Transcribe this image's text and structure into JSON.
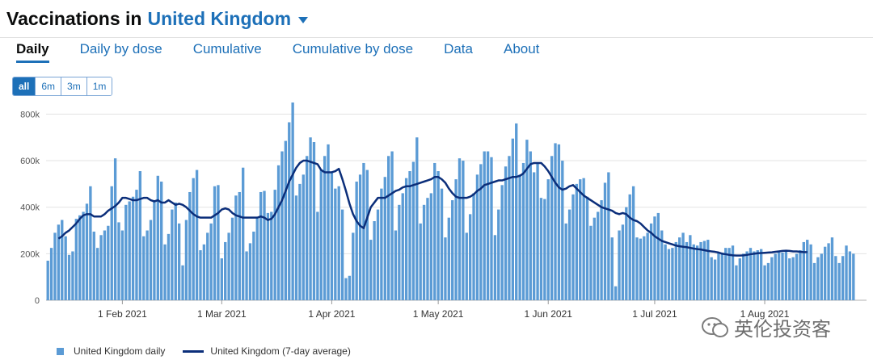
{
  "header": {
    "title_prefix": "Vaccinations in",
    "area": "United Kingdom"
  },
  "tabs": [
    {
      "label": "Daily",
      "active": true
    },
    {
      "label": "Daily by dose",
      "active": false
    },
    {
      "label": "Cumulative",
      "active": false
    },
    {
      "label": "Cumulative by dose",
      "active": false
    },
    {
      "label": "Data",
      "active": false
    },
    {
      "label": "About",
      "active": false
    }
  ],
  "range_buttons": [
    {
      "label": "all",
      "active": true
    },
    {
      "label": "6m",
      "active": false
    },
    {
      "label": "3m",
      "active": false
    },
    {
      "label": "1m",
      "active": false
    }
  ],
  "legend": {
    "bar_label": "United Kingdom daily",
    "line_label": "United Kingdom (7-day average)"
  },
  "watermark": {
    "text": "英伦投资客"
  },
  "colors": {
    "bar": "#5b9bd5",
    "line": "#0b2e7a",
    "accent": "#1d70b8",
    "grid": "#e3e3e3"
  },
  "chart_data": {
    "type": "bar",
    "x_start": "2021-01-11",
    "x_ticks": [
      {
        "label": "1 Feb 2021",
        "day": 21
      },
      {
        "label": "1 Mar 2021",
        "day": 49
      },
      {
        "label": "1 Apr 2021",
        "day": 80
      },
      {
        "label": "1 May 2021",
        "day": 110
      },
      {
        "label": "1 Jun 2021",
        "day": 141
      },
      {
        "label": "1 Jul 2021",
        "day": 171
      },
      {
        "label": "1 Aug 2021",
        "day": 202
      }
    ],
    "y_ticks": [
      {
        "label": "0",
        "value": 0
      },
      {
        "label": "200k",
        "value": 200000
      },
      {
        "label": "400k",
        "value": 400000
      },
      {
        "label": "600k",
        "value": 600000
      },
      {
        "label": "800k",
        "value": 800000
      }
    ],
    "ylim": [
      0,
      850000
    ],
    "series": [
      {
        "name": "United Kingdom daily",
        "type": "bar",
        "values": [
          170000,
          225000,
          290000,
          325000,
          345000,
          275000,
          195000,
          210000,
          350000,
          365000,
          380000,
          415000,
          490000,
          295000,
          225000,
          280000,
          300000,
          320000,
          490000,
          610000,
          335000,
          300000,
          410000,
          425000,
          445000,
          475000,
          555000,
          275000,
          300000,
          345000,
          425000,
          535000,
          510000,
          240000,
          285000,
          390000,
          420000,
          330000,
          150000,
          345000,
          465000,
          525000,
          560000,
          215000,
          240000,
          290000,
          330000,
          490000,
          495000,
          180000,
          250000,
          290000,
          355000,
          450000,
          465000,
          570000,
          210000,
          245000,
          295000,
          355000,
          465000,
          470000,
          375000,
          380000,
          475000,
          580000,
          640000,
          685000,
          765000,
          850000,
          450000,
          500000,
          540000,
          620000,
          700000,
          680000,
          380000,
          560000,
          620000,
          670000,
          550000,
          480000,
          490000,
          390000,
          95000,
          105000,
          290000,
          510000,
          540000,
          590000,
          560000,
          260000,
          340000,
          390000,
          480000,
          530000,
          620000,
          640000,
          300000,
          410000,
          460000,
          525000,
          555000,
          595000,
          700000,
          330000,
          410000,
          440000,
          460000,
          590000,
          555000,
          480000,
          270000,
          355000,
          430000,
          520000,
          610000,
          600000,
          290000,
          370000,
          460000,
          540000,
          585000,
          640000,
          640000,
          615000,
          280000,
          390000,
          495000,
          575000,
          620000,
          695000,
          760000,
          540000,
          590000,
          690000,
          640000,
          550000,
          590000,
          440000,
          435000,
          520000,
          620000,
          675000,
          670000,
          600000,
          330000,
          390000,
          455000,
          500000,
          520000,
          525000,
          445000,
          320000,
          355000,
          380000,
          430000,
          505000,
          550000,
          270000,
          60000,
          300000,
          325000,
          400000,
          455000,
          490000,
          270000,
          265000,
          275000,
          290000,
          330000,
          360000,
          375000,
          300000,
          240000,
          220000,
          225000,
          250000,
          270000,
          290000,
          250000,
          280000,
          240000,
          235000,
          250000,
          255000,
          260000,
          185000,
          175000,
          205000,
          205000,
          225000,
          225000,
          235000,
          150000,
          180000,
          200000,
          210000,
          225000,
          210000,
          215000,
          220000,
          150000,
          160000,
          185000,
          200000,
          210000,
          205000,
          215000,
          180000,
          185000,
          200000,
          215000,
          250000,
          260000,
          240000,
          160000,
          185000,
          200000,
          230000,
          245000,
          270000,
          190000,
          160000,
          190000,
          235000,
          210000,
          200000
        ],
        "color": "#5b9bd5"
      },
      {
        "name": "United Kingdom (7-day average)",
        "type": "line",
        "start_day": 3,
        "values": [
          265000,
          275000,
          290000,
          300000,
          315000,
          330000,
          350000,
          365000,
          370000,
          370000,
          360000,
          360000,
          360000,
          370000,
          385000,
          395000,
          405000,
          420000,
          440000,
          440000,
          435000,
          430000,
          430000,
          435000,
          440000,
          440000,
          430000,
          425000,
          430000,
          420000,
          420000,
          430000,
          420000,
          410000,
          415000,
          410000,
          400000,
          385000,
          370000,
          360000,
          355000,
          355000,
          355000,
          355000,
          365000,
          375000,
          390000,
          395000,
          390000,
          375000,
          365000,
          360000,
          355000,
          355000,
          355000,
          355000,
          355000,
          360000,
          355000,
          345000,
          350000,
          370000,
          400000,
          430000,
          470000,
          510000,
          540000,
          570000,
          590000,
          600000,
          600000,
          595000,
          590000,
          585000,
          560000,
          550000,
          550000,
          550000,
          555000,
          565000,
          520000,
          470000,
          415000,
          370000,
          340000,
          320000,
          310000,
          355000,
          400000,
          420000,
          440000,
          440000,
          440000,
          450000,
          460000,
          470000,
          475000,
          485000,
          490000,
          490000,
          495000,
          500000,
          505000,
          510000,
          515000,
          520000,
          530000,
          530000,
          520000,
          505000,
          480000,
          460000,
          445000,
          440000,
          440000,
          440000,
          445000,
          455000,
          470000,
          480000,
          495000,
          500000,
          505000,
          510000,
          515000,
          515000,
          520000,
          525000,
          530000,
          530000,
          535000,
          545000,
          565000,
          585000,
          590000,
          590000,
          590000,
          575000,
          555000,
          530000,
          505000,
          485000,
          475000,
          480000,
          490000,
          495000,
          480000,
          465000,
          450000,
          440000,
          430000,
          420000,
          410000,
          400000,
          395000,
          390000,
          385000,
          375000,
          370000,
          375000,
          370000,
          355000,
          345000,
          340000,
          330000,
          315000,
          300000,
          290000,
          275000,
          265000,
          255000,
          250000,
          245000,
          240000,
          235000,
          232000,
          230000,
          228000,
          225000,
          222000,
          220000,
          218000,
          215000,
          212000,
          210000,
          208000,
          205000,
          200000,
          198000,
          195000,
          193000,
          192000,
          192000,
          193000,
          195000,
          198000,
          200000,
          202000,
          203000,
          204000,
          205000,
          206000,
          208000,
          210000,
          212000,
          213000,
          212000,
          210000,
          210000,
          208000,
          207000,
          207000
        ]
      }
    ]
  }
}
